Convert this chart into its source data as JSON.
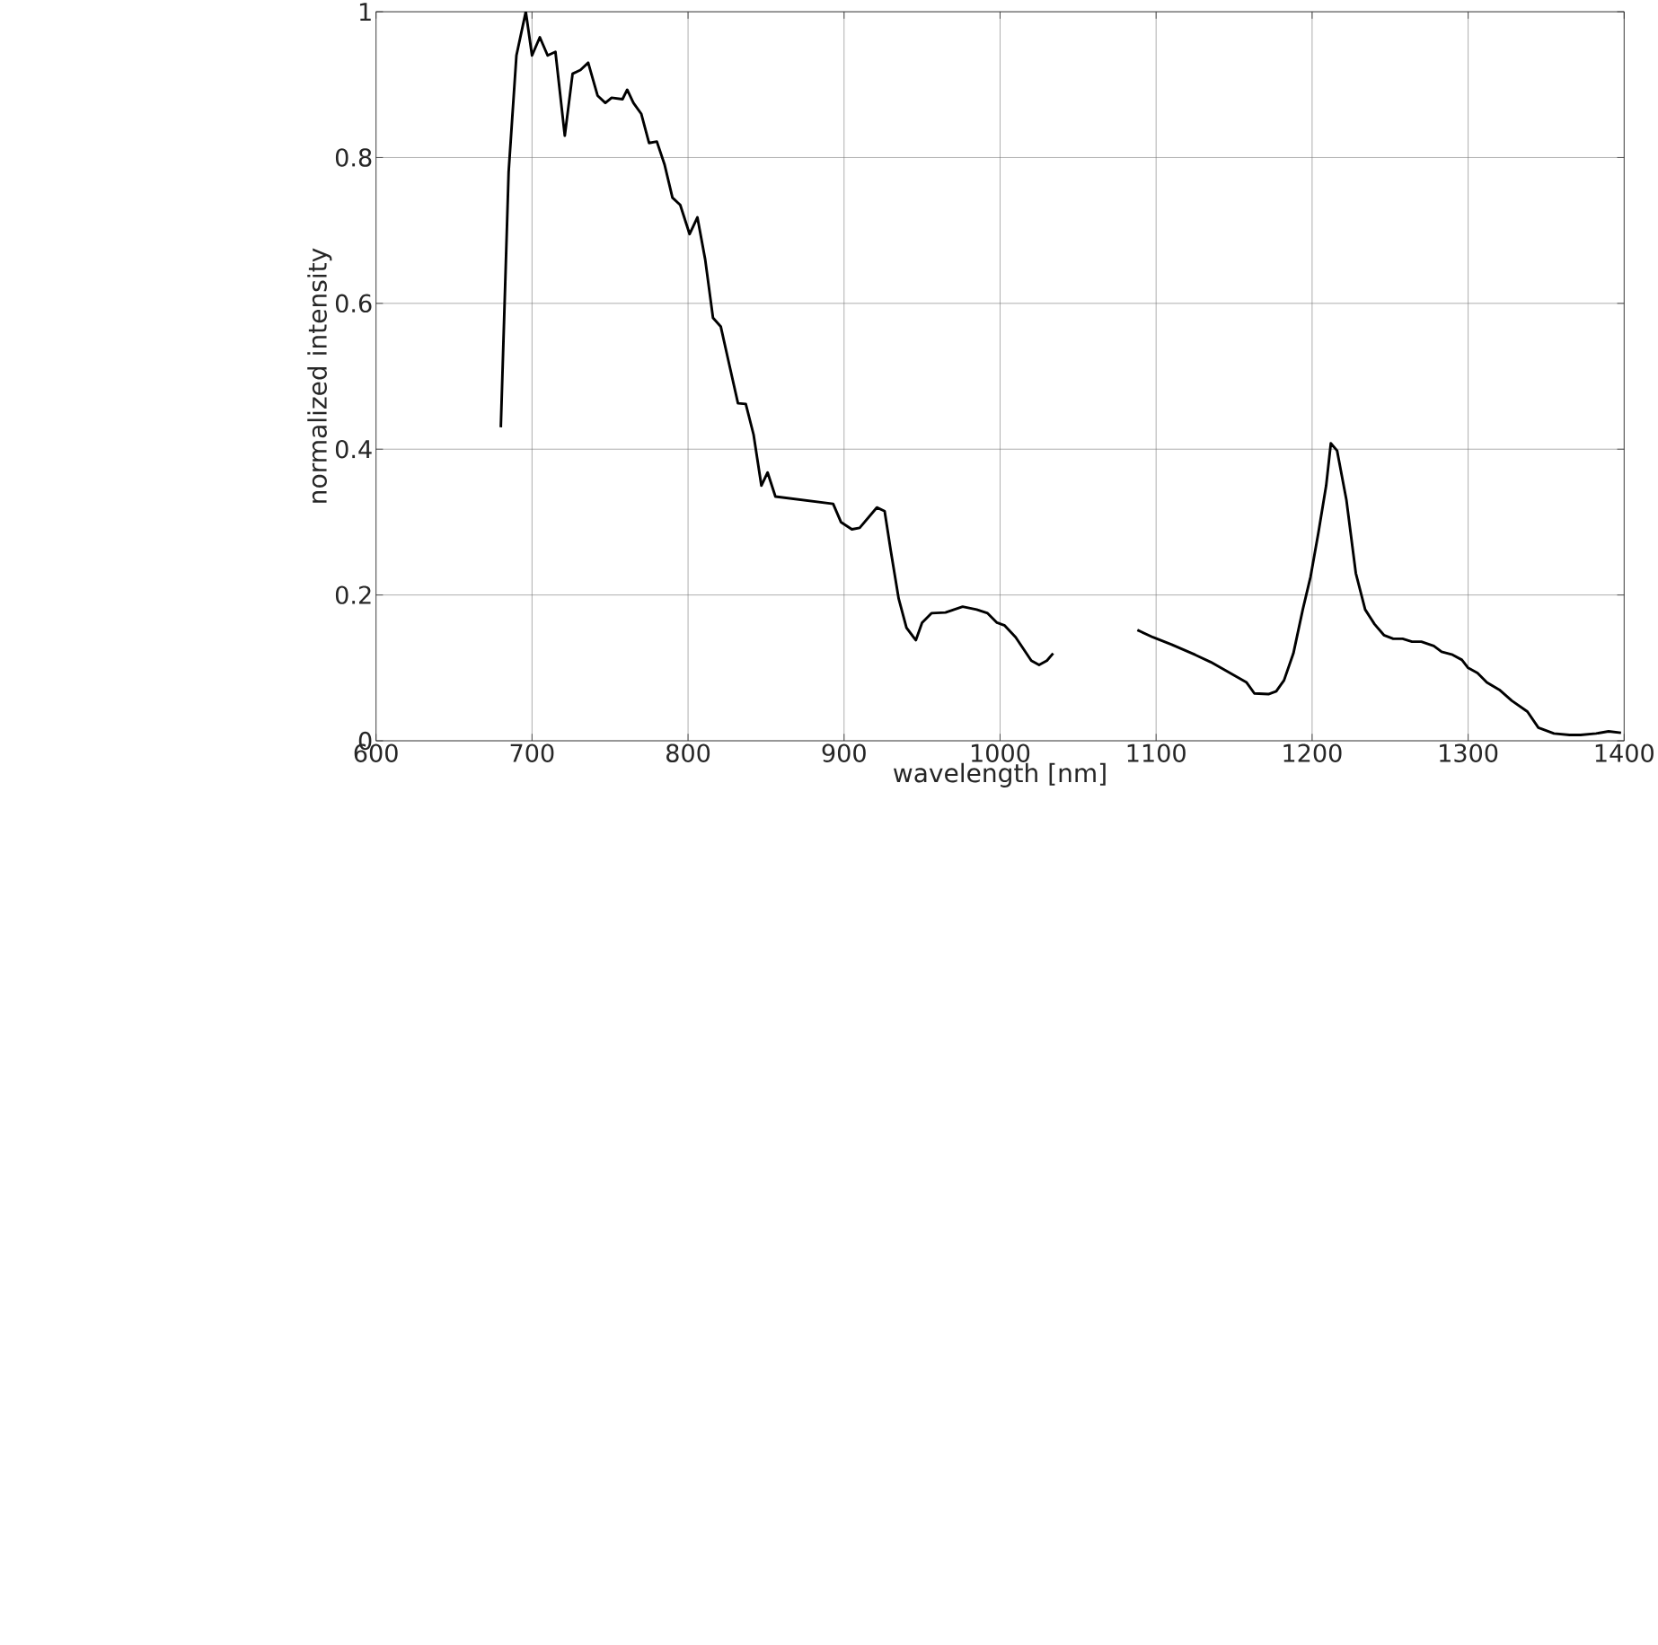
{
  "chart_data": {
    "type": "line",
    "xlabel": "wavelength [nm]",
    "ylabel": "normalized intensity",
    "xlim": [
      600,
      1400
    ],
    "ylim": [
      0,
      1
    ],
    "xticks": [
      600,
      700,
      800,
      900,
      1000,
      1100,
      1200,
      1300,
      1400
    ],
    "yticks": [
      0,
      0.2,
      0.4,
      0.6,
      0.8,
      1
    ],
    "grid": true,
    "line_style": "solid",
    "series": [
      {
        "color": "#000000",
        "x": [
          680,
          685,
          690,
          696,
          700,
          705,
          710,
          715,
          721,
          726,
          731,
          736,
          742,
          747,
          751,
          758,
          761,
          765,
          770,
          775,
          780,
          785,
          790,
          795,
          801,
          806,
          811,
          816,
          821,
          826,
          832,
          837,
          842,
          847,
          851,
          856,
          893,
          898,
          905,
          910,
          921,
          926,
          930,
          935,
          940,
          946,
          950,
          956,
          965,
          976,
          985,
          992,
          998,
          1003,
          1010,
          1020,
          1025,
          1030,
          1034,
          1060,
          1088,
          1098,
          1110,
          1125,
          1135,
          1158,
          1163,
          1172,
          1177,
          1182,
          1188,
          1194,
          1199,
          1204,
          1209,
          1212,
          1216,
          1222,
          1228,
          1234,
          1240,
          1246,
          1252,
          1258,
          1264,
          1270,
          1278,
          1283,
          1290,
          1296,
          1300,
          1306,
          1312,
          1320,
          1328,
          1338,
          1345,
          1355,
          1365,
          1372,
          1382,
          1390,
          1398
        ],
        "values": [
          0.43,
          0.78,
          0.94,
          1.0,
          0.94,
          0.965,
          0.94,
          0.945,
          0.83,
          0.915,
          0.92,
          0.93,
          0.885,
          0.875,
          0.882,
          0.88,
          0.893,
          0.875,
          0.86,
          0.82,
          0.822,
          0.79,
          0.745,
          0.735,
          0.695,
          0.718,
          0.66,
          0.58,
          0.568,
          0.52,
          0.463,
          0.462,
          0.42,
          0.35,
          0.368,
          0.335,
          0.325,
          0.3,
          0.29,
          0.292,
          0.32,
          0.315,
          0.26,
          0.195,
          0.155,
          0.138,
          0.162,
          0.175,
          0.176,
          0.184,
          0.18,
          0.175,
          0.162,
          0.158,
          0.142,
          0.11,
          0.104,
          0.11,
          0.12,
          null,
          0.152,
          0.142,
          0.132,
          0.118,
          0.108,
          0.08,
          0.065,
          0.064,
          0.068,
          0.083,
          0.12,
          0.18,
          0.225,
          0.285,
          0.35,
          0.408,
          0.398,
          0.33,
          0.23,
          0.18,
          0.16,
          0.145,
          0.14,
          0.14,
          0.136,
          0.136,
          0.13,
          0.122,
          0.118,
          0.111,
          0.1,
          0.093,
          0.08,
          0.07,
          0.055,
          0.04,
          0.018,
          0.01,
          0.008,
          0.008,
          0.01,
          0.013,
          0.011
        ]
      }
    ]
  }
}
